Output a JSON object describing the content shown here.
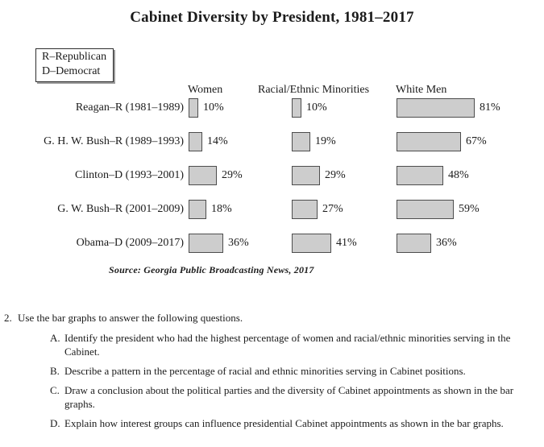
{
  "page": {
    "title": "Cabinet Diversity by President, 1981–2017"
  },
  "legend": {
    "line1": "R–Republican",
    "line2": "D–Democrat"
  },
  "chart_data": {
    "type": "bar",
    "orientation": "horizontal",
    "title": "Cabinet Diversity by President, 1981–2017",
    "unit": "%",
    "xlim": [
      0,
      100
    ],
    "grid": false,
    "value_labels_shown": true,
    "bar_color": "#cdcdcd",
    "bar_border_color": "#4d4d4d",
    "legend_note": [
      "R–Republican",
      "D–Democrat"
    ],
    "categories": [
      "Reagan–R (1981–1989)",
      "G. H. W. Bush–R (1989–1993)",
      "Clinton–D (1993–2001)",
      "G. W. Bush–R (2001–2009)",
      "Obama–D (2009–2017)"
    ],
    "series": [
      {
        "name": "Women",
        "values": [
          10,
          14,
          29,
          18,
          36
        ]
      },
      {
        "name": "Racial/Ethnic Minorities",
        "values": [
          10,
          19,
          29,
          27,
          41
        ]
      },
      {
        "name": "White Men",
        "values": [
          81,
          67,
          48,
          59,
          36
        ]
      }
    ],
    "source": "Source: Georgia Public Broadcasting News, 2017"
  },
  "columns": {
    "women": "Women",
    "minorities": "Racial/Ethnic Minorities",
    "white_men": "White Men"
  },
  "presidents": [
    {
      "label": "Reagan–R (1981–1989)",
      "women": "10%",
      "minorities": "10%",
      "white_men": "81%"
    },
    {
      "label": "G. H. W. Bush–R (1989–1993)",
      "women": "14%",
      "minorities": "19%",
      "white_men": "67%"
    },
    {
      "label": "Clinton–D (1993–2001)",
      "women": "29%",
      "minorities": "29%",
      "white_men": "48%"
    },
    {
      "label": "G. W. Bush–R (2001–2009)",
      "women": "18%",
      "minorities": "27%",
      "white_men": "59%"
    },
    {
      "label": "Obama–D (2009–2017)",
      "women": "36%",
      "minorities": "41%",
      "white_men": "36%"
    }
  ],
  "source_note": "Source: Georgia Public Broadcasting News, 2017",
  "questions": {
    "number": "2.",
    "intro": "Use the bar graphs to answer the following questions.",
    "items": [
      {
        "label": "A.",
        "text": "Identify the president who had the highest percentage of women and racial/ethnic minorities serving in the Cabinet."
      },
      {
        "label": "B.",
        "text": "Describe a pattern in the percentage of racial and ethnic minorities serving in Cabinet positions."
      },
      {
        "label": "C.",
        "text": "Draw a conclusion about the political parties and the diversity of Cabinet appointments as shown in the bar graphs."
      },
      {
        "label": "D.",
        "text": "Explain how interest groups can influence presidential Cabinet appointments as shown in the bar graphs."
      }
    ]
  }
}
